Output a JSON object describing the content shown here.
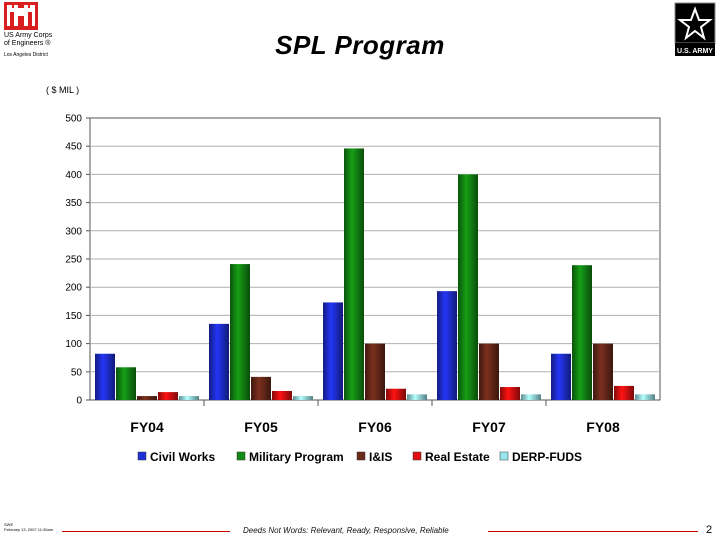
{
  "header": {
    "org_line1": "US Army Corps",
    "org_line2": "of Engineers ®",
    "district": "Los Angeles District",
    "title": "SPL  Program",
    "army_logo_text": "U.S. ARMY"
  },
  "colors": {
    "Civil Works": "#1f2fd6",
    "Military Program": "#138a13",
    "I&IS": "#6b2a1a",
    "Real Estate": "#e01010",
    "DERP-FUDS": "#9ce6ee"
  },
  "chart_data": {
    "type": "bar",
    "title": "SPL  Program",
    "ylabel": "( $ MIL )",
    "xlabel": "",
    "categories": [
      "FY04",
      "FY05",
      "FY06",
      "FY07",
      "FY08"
    ],
    "ylim": [
      0,
      500
    ],
    "yticks": [
      0,
      50,
      100,
      150,
      200,
      250,
      300,
      350,
      400,
      450,
      500
    ],
    "grid": true,
    "legend": "bottom",
    "series": [
      {
        "name": "Civil Works",
        "values": [
          82,
          135,
          173,
          193,
          82
        ]
      },
      {
        "name": "Military Program",
        "values": [
          58,
          241,
          446,
          400,
          239
        ]
      },
      {
        "name": "I&IS",
        "values": [
          7,
          41,
          100,
          100,
          100
        ]
      },
      {
        "name": "Real Estate",
        "values": [
          14,
          16,
          20,
          23,
          25
        ]
      },
      {
        "name": "DERP-FUDS",
        "values": [
          7,
          7,
          10,
          10,
          10
        ]
      }
    ]
  },
  "footer": {
    "slide_id": "SWE",
    "date": "February 13, 2007  11:30am",
    "motto_prefix": "Deeds Not Words: ",
    "motto": "Relevant, Ready, Responsive, Reliable",
    "page_number": "2"
  }
}
